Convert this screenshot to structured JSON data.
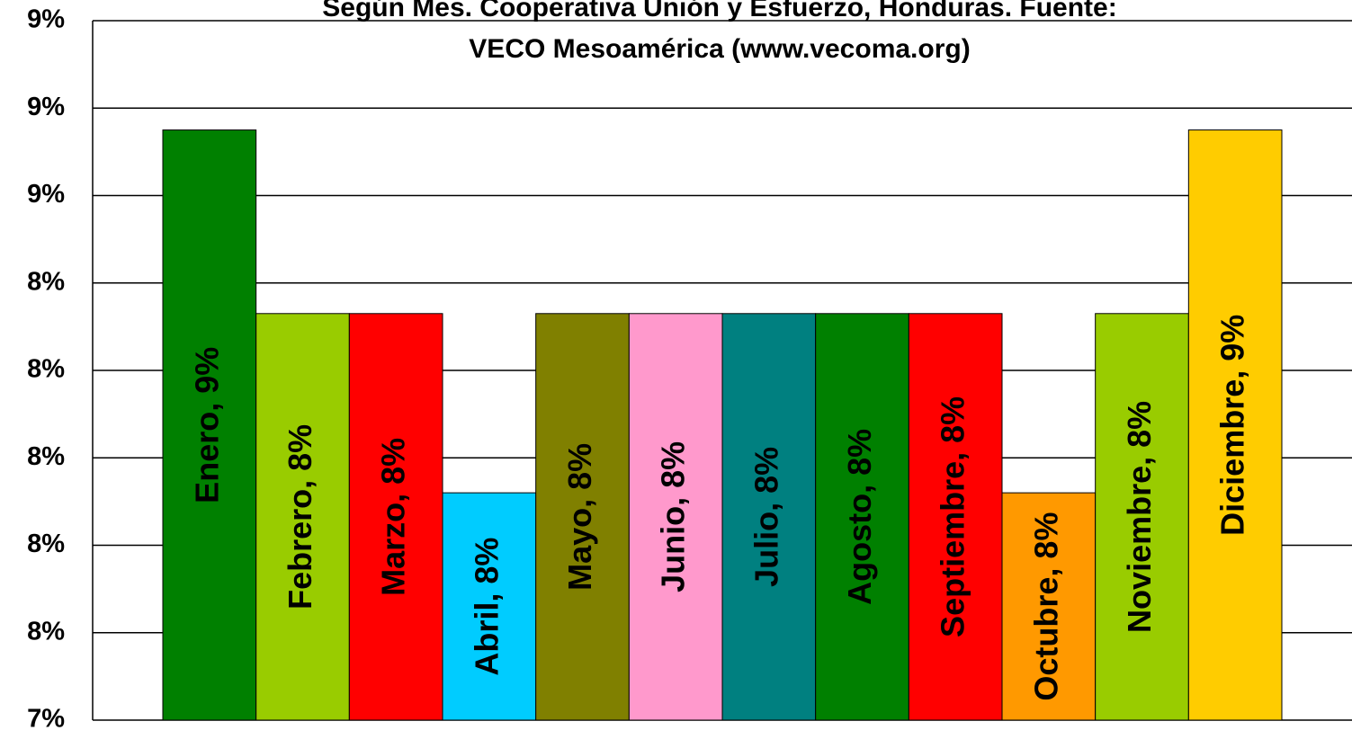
{
  "chart_data": {
    "type": "bar",
    "title": [
      "Según Mes. Cooperativa Unión y Esfuerzo, Honduras. Fuente:",
      "VECO Mesoamérica (www.vecoma.org)"
    ],
    "values": [
      8.75,
      8.33,
      8.33,
      7.92,
      8.33,
      8.33,
      8.33,
      8.33,
      8.33,
      7.92,
      8.33,
      8.75
    ],
    "value_labels": [
      "Enero, 9%",
      "Febrero, 8%",
      "Marzo, 8%",
      "Abril, 8%",
      "Mayo, 8%",
      "Junio, 8%",
      "Julio, 8%",
      "Agosto, 8%",
      "Septiembre, 8%",
      "Octubre, 8%",
      "Noviembre, 8%",
      "Diciembre, 9%"
    ],
    "colors": [
      "#008000",
      "#99cc00",
      "#ff0000",
      "#00ccff",
      "#808000",
      "#ff99cc",
      "#008080",
      "#008000",
      "#ff0000",
      "#ff9900",
      "#99cc00",
      "#ffcc00"
    ],
    "ylim": [
      7.4,
      9.0
    ],
    "yticks": [
      {
        "value": 7.4,
        "label": "7%"
      },
      {
        "value": 7.6,
        "label": "8%"
      },
      {
        "value": 7.8,
        "label": "8%"
      },
      {
        "value": 8.0,
        "label": "8%"
      },
      {
        "value": 8.2,
        "label": "8%"
      },
      {
        "value": 8.4,
        "label": "8%"
      },
      {
        "value": 8.6,
        "label": "9%"
      },
      {
        "value": 8.8,
        "label": "9%"
      },
      {
        "value": 9.0,
        "label": "9%"
      }
    ],
    "grid": true
  }
}
